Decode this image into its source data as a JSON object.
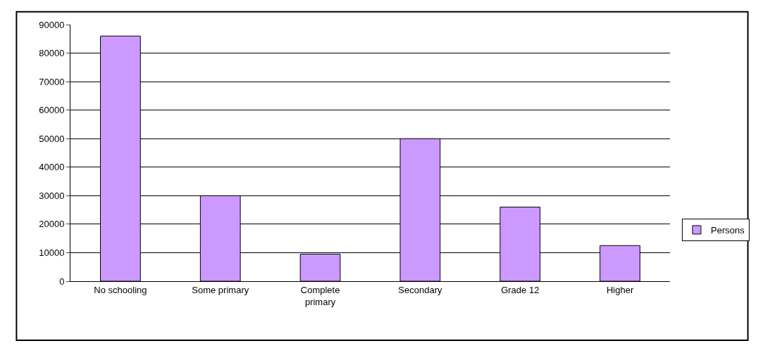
{
  "chart_data": {
    "type": "bar",
    "categories": [
      "No schooling",
      "Some primary",
      "Complete primary",
      "Secondary",
      "Grade 12",
      "Higher"
    ],
    "series": [
      {
        "name": "Persons",
        "color": "#cc99ff",
        "values": [
          86000,
          30000,
          9500,
          50000,
          26000,
          12500
        ]
      }
    ],
    "ylim": [
      0,
      90000
    ],
    "yticks": [
      0,
      10000,
      20000,
      30000,
      40000,
      50000,
      60000,
      70000,
      80000,
      90000
    ],
    "grid": "y",
    "legend": "right"
  }
}
